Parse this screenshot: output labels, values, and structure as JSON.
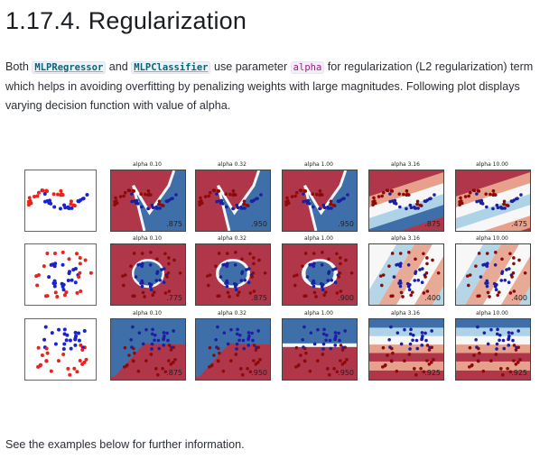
{
  "heading": {
    "number": "1.17.4.",
    "title": "Regularization"
  },
  "intro": {
    "t1": "Both ",
    "code1": "MLPRegressor",
    "t2": " and ",
    "code2": "MLPClassifier",
    "t3": " use parameter ",
    "code3": "alpha",
    "t4": " for regularization (L2 regularization) term which helps in avoiding overfitting by penalizing weights with large magnitudes. Following plot displays varying decision function with value of alpha."
  },
  "figure": {
    "panel_titles": [
      "alpha 0.10",
      "alpha 0.32",
      "alpha 1.00",
      "alpha 3.16",
      "alpha 10.00"
    ],
    "rows": [
      {
        "dataset": "moons",
        "scores": [
          ".875",
          ".950",
          ".950",
          ".875",
          ".475"
        ]
      },
      {
        "dataset": "circles",
        "scores": [
          ".775",
          ".875",
          ".900",
          ".400",
          ".400"
        ]
      },
      {
        "dataset": "linearly separable",
        "scores": [
          ".875",
          ".950",
          ".950",
          ".925",
          ".925"
        ]
      }
    ],
    "colors": {
      "red_region": "#b0364a",
      "blue_region": "#3f6fa8",
      "white_band": "#f7f7f7",
      "light_red": "#e7a08c",
      "light_blue": "#aed2e6",
      "dot_red": "#e8231c",
      "dot_blue": "#1a24c8",
      "dot_dark_red": "#8c0a0a",
      "dot_dark_blue": "#1a20a0"
    }
  },
  "footer": {
    "text": "See the examples below for further information."
  }
}
